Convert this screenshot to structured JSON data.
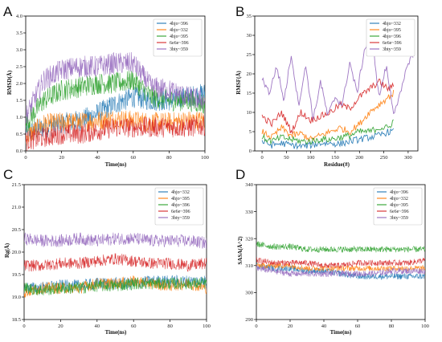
{
  "figure": {
    "colors": [
      "#1f77b4",
      "#ff7f0e",
      "#2ca02c",
      "#d62728",
      "#9467bd"
    ]
  },
  "chart_data": [
    {
      "panel": "A",
      "type": "line",
      "xlabel": "Time(ns)",
      "ylabel": "RMSD(Å)",
      "xlim": [
        0,
        100
      ],
      "ylim": [
        0.0,
        4.0
      ],
      "xticks": [
        "0",
        "20",
        "40",
        "60",
        "80",
        "100"
      ],
      "yticks": [
        "0.0",
        "0.5",
        "1.0",
        "1.5",
        "2.0",
        "2.5",
        "3.0",
        "3.5",
        "4.0"
      ],
      "legend_position": "top-right",
      "series": [
        {
          "name": "4hjo~396",
          "x": [
            0,
            10,
            20,
            30,
            40,
            50,
            60,
            70,
            80,
            90,
            100
          ],
          "values": [
            0.5,
            0.7,
            0.8,
            0.9,
            1.1,
            1.4,
            1.6,
            1.5,
            1.5,
            1.6,
            1.7
          ]
        },
        {
          "name": "4hjo~332",
          "x": [
            0,
            10,
            20,
            30,
            40,
            50,
            60,
            70,
            80,
            90,
            100
          ],
          "values": [
            0.4,
            0.8,
            0.85,
            0.85,
            0.9,
            0.95,
            0.9,
            0.85,
            0.85,
            0.9,
            0.9
          ]
        },
        {
          "name": "4hjo~395",
          "x": [
            0,
            10,
            20,
            30,
            40,
            50,
            60,
            70,
            80,
            90,
            100
          ],
          "values": [
            0.8,
            1.5,
            1.8,
            1.9,
            2.0,
            2.0,
            2.1,
            1.6,
            1.5,
            1.5,
            1.4
          ]
        },
        {
          "name": "6e6e~396",
          "x": [
            0,
            10,
            20,
            30,
            40,
            50,
            60,
            70,
            80,
            90,
            100
          ],
          "values": [
            0.3,
            0.4,
            0.5,
            0.5,
            0.6,
            0.7,
            0.7,
            0.7,
            0.7,
            0.7,
            0.75
          ]
        },
        {
          "name": "3bty~359",
          "x": [
            0,
            10,
            20,
            30,
            40,
            50,
            60,
            70,
            80,
            90,
            100
          ],
          "values": [
            1.0,
            2.1,
            2.4,
            2.5,
            2.5,
            2.6,
            2.6,
            1.9,
            1.8,
            1.6,
            1.5
          ]
        }
      ]
    },
    {
      "panel": "B",
      "type": "line",
      "xlabel": "Residue(#)",
      "ylabel": "RMSF(Å)",
      "xlim": [
        -15,
        320
      ],
      "ylim": [
        0,
        35
      ],
      "xticks": [
        "0",
        "50",
        "100",
        "150",
        "200",
        "250",
        "300"
      ],
      "yticks": [
        "0",
        "5",
        "10",
        "15",
        "20",
        "25",
        "30",
        "35"
      ],
      "legend_position": "top-right",
      "series": [
        {
          "name": "4hjo~332",
          "x": [
            0,
            20,
            40,
            60,
            80,
            100,
            120,
            140,
            160,
            180,
            200,
            220,
            240,
            260,
            270
          ],
          "values": [
            2.5,
            1.5,
            2.0,
            1.5,
            1.2,
            1.5,
            2.0,
            2.0,
            1.8,
            2.5,
            3.0,
            3.5,
            4.0,
            5.0,
            5.0
          ]
        },
        {
          "name": "4hjo~395",
          "x": [
            0,
            20,
            40,
            60,
            80,
            100,
            120,
            140,
            160,
            180,
            200,
            220,
            240,
            260,
            270
          ],
          "values": [
            5,
            3.5,
            6,
            4,
            4.5,
            3,
            4,
            5,
            6,
            5,
            7,
            10,
            12,
            14,
            15
          ]
        },
        {
          "name": "4hjo~396",
          "x": [
            0,
            20,
            40,
            60,
            80,
            100,
            120,
            140,
            160,
            180,
            200,
            220,
            240,
            260,
            270
          ],
          "values": [
            3.5,
            2.5,
            3.5,
            3,
            2.5,
            2.5,
            3,
            3,
            3.5,
            4,
            5,
            5,
            6,
            6,
            8
          ]
        },
        {
          "name": "6e6e~396",
          "x": [
            0,
            20,
            40,
            60,
            80,
            100,
            120,
            140,
            160,
            180,
            200,
            220,
            240,
            260,
            270
          ],
          "values": [
            9,
            7,
            10,
            5,
            10,
            8,
            9,
            10,
            12,
            11,
            14,
            16,
            18,
            16,
            17
          ]
        },
        {
          "name": "3bty~359",
          "x": [
            0,
            15,
            30,
            45,
            60,
            75,
            90,
            105,
            120,
            135,
            150,
            165,
            180,
            195,
            210,
            225,
            240,
            255,
            270,
            285,
            300,
            310
          ],
          "values": [
            19,
            15,
            22,
            13,
            25,
            12,
            22,
            8,
            18,
            9,
            14,
            12,
            23,
            15,
            26,
            31,
            14,
            22,
            10,
            15,
            23,
            25
          ]
        }
      ]
    },
    {
      "panel": "C",
      "type": "line",
      "xlabel": "Time(ns)",
      "ylabel": "Rg(Å)",
      "xlim": [
        0,
        100
      ],
      "ylim": [
        18.5,
        21.5
      ],
      "xticks": [
        "0",
        "20",
        "40",
        "60",
        "80",
        "100"
      ],
      "yticks": [
        "18.5",
        "19.0",
        "19.5",
        "20.0",
        "20.5",
        "21.0",
        "21.5"
      ],
      "legend_position": "top-right",
      "series": [
        {
          "name": "4hjo~332",
          "x": [
            0,
            10,
            20,
            30,
            40,
            50,
            60,
            70,
            80,
            90,
            100
          ],
          "values": [
            19.2,
            19.2,
            19.25,
            19.25,
            19.3,
            19.3,
            19.3,
            19.35,
            19.35,
            19.35,
            19.35
          ]
        },
        {
          "name": "4hjo~395",
          "x": [
            0,
            10,
            20,
            30,
            40,
            50,
            60,
            70,
            80,
            90,
            100
          ],
          "values": [
            19.1,
            19.2,
            19.2,
            19.2,
            19.3,
            19.3,
            19.35,
            19.3,
            19.25,
            19.3,
            19.2
          ]
        },
        {
          "name": "4hjo~396",
          "x": [
            0,
            10,
            20,
            30,
            40,
            50,
            60,
            70,
            80,
            90,
            100
          ],
          "values": [
            19.2,
            19.15,
            19.2,
            19.2,
            19.25,
            19.25,
            19.3,
            19.3,
            19.3,
            19.3,
            19.3
          ]
        },
        {
          "name": "6e6e~396",
          "x": [
            0,
            10,
            20,
            30,
            40,
            50,
            60,
            70,
            80,
            90,
            100
          ],
          "values": [
            19.7,
            19.7,
            19.75,
            19.75,
            19.8,
            19.85,
            19.8,
            19.75,
            19.75,
            19.7,
            19.75
          ]
        },
        {
          "name": "3bty~359",
          "x": [
            0,
            10,
            20,
            30,
            40,
            50,
            60,
            70,
            80,
            90,
            100
          ],
          "values": [
            20.3,
            20.25,
            20.25,
            20.3,
            20.25,
            20.3,
            20.3,
            20.25,
            20.25,
            20.25,
            20.2
          ]
        }
      ]
    },
    {
      "panel": "D",
      "type": "line",
      "xlabel": "Time(ns)",
      "ylabel": "SASA(Å^2)",
      "xlim": [
        0,
        100
      ],
      "ylim": [
        290,
        340
      ],
      "xticks": [
        "0",
        "20",
        "40",
        "60",
        "80",
        "100"
      ],
      "yticks": [
        "290",
        "300",
        "310",
        "320",
        "330",
        "340"
      ],
      "legend_position": "top-right",
      "series": [
        {
          "name": "4hjo~396",
          "x": [
            0,
            10,
            20,
            30,
            40,
            50,
            60,
            70,
            80,
            90,
            100
          ],
          "values": [
            310,
            309,
            309,
            308,
            308,
            307,
            306,
            306,
            306,
            306,
            306
          ]
        },
        {
          "name": "4hjo~332",
          "x": [
            0,
            10,
            20,
            30,
            40,
            50,
            60,
            70,
            80,
            90,
            100
          ],
          "values": [
            310,
            310,
            310,
            309,
            309,
            309,
            309,
            309,
            309,
            309,
            309
          ]
        },
        {
          "name": "4hjo~395",
          "x": [
            0,
            10,
            20,
            30,
            40,
            50,
            60,
            70,
            80,
            90,
            100
          ],
          "values": [
            318,
            317,
            317,
            316,
            316,
            316,
            316,
            316,
            316,
            316,
            316
          ]
        },
        {
          "name": "6e6e~396",
          "x": [
            0,
            10,
            20,
            30,
            40,
            50,
            60,
            70,
            80,
            90,
            100
          ],
          "values": [
            312,
            311,
            311,
            311,
            310,
            310,
            311,
            311,
            311,
            311,
            312
          ]
        },
        {
          "name": "3bty~359",
          "x": [
            0,
            10,
            20,
            30,
            40,
            50,
            60,
            70,
            80,
            90,
            100
          ],
          "values": [
            309,
            308,
            307,
            307,
            307,
            307,
            307,
            307,
            308,
            308,
            308
          ]
        }
      ]
    }
  ]
}
